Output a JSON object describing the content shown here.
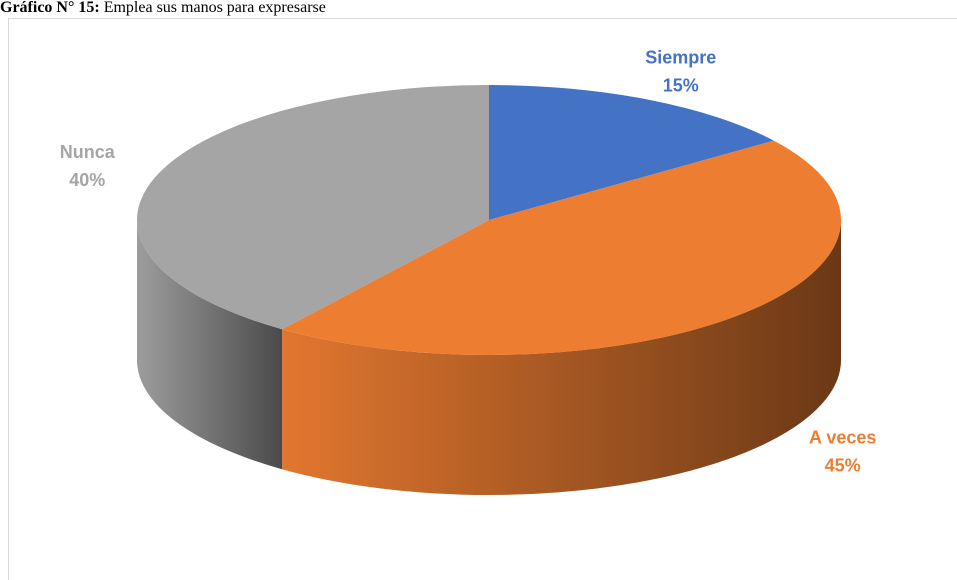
{
  "caption": {
    "label": "Gráfico N° 15:",
    "text": "Emplea sus manos para expresarse"
  },
  "chart_data": {
    "type": "pie",
    "categories": [
      "Siempre",
      "A veces",
      "Nunca"
    ],
    "values": [
      15,
      45,
      40
    ],
    "value_labels": [
      "15%",
      "45%",
      "40%"
    ],
    "colors": [
      "#4472c4",
      "#ed7d31",
      "#a5a5a5"
    ]
  }
}
